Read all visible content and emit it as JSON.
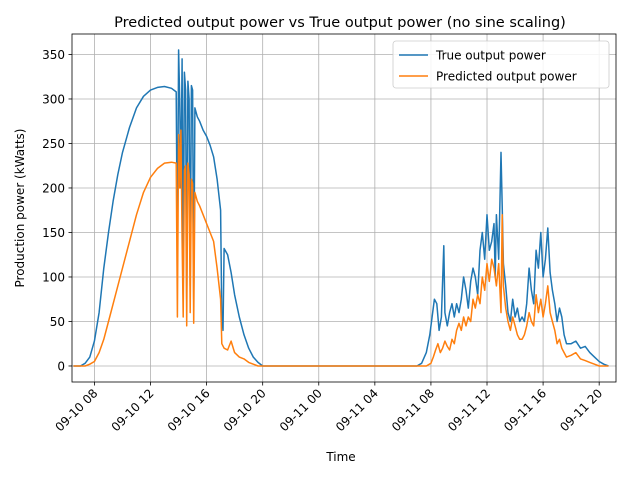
{
  "chart_data": {
    "type": "line",
    "title": "Predicted output power vs True output power (no sine scaling)",
    "xlabel": "Time",
    "ylabel": "Production power (kWatts)",
    "x_unit": "datetime",
    "xlim": [
      "2019-09-10 06:24",
      "2019-09-11 21:12"
    ],
    "ylim": [
      -18,
      373
    ],
    "yticks": [
      0,
      50,
      100,
      150,
      200,
      250,
      300,
      350
    ],
    "xticks": [
      "09-10 08",
      "09-10 12",
      "09-10 16",
      "09-10 20",
      "09-11 00",
      "09-11 04",
      "09-11 08",
      "09-11 12",
      "09-11 16",
      "09-11 20"
    ],
    "xtick_values": [
      "2019-09-10 08:00",
      "2019-09-10 12:00",
      "2019-09-10 16:00",
      "2019-09-10 20:00",
      "2019-09-11 00:00",
      "2019-09-11 04:00",
      "2019-09-11 08:00",
      "2019-09-11 12:00",
      "2019-09-11 16:00",
      "2019-09-11 20:00"
    ],
    "grid": true,
    "legend_position": "top-right",
    "series": [
      {
        "name": "True output power",
        "color": "#1f77b4",
        "points": [
          [
            "2019-09-10 06:30",
            0
          ],
          [
            "2019-09-10 07:00",
            0
          ],
          [
            "2019-09-10 07:20",
            3
          ],
          [
            "2019-09-10 07:40",
            10
          ],
          [
            "2019-09-10 08:00",
            28
          ],
          [
            "2019-09-10 08:20",
            60
          ],
          [
            "2019-09-10 08:40",
            110
          ],
          [
            "2019-09-10 09:00",
            150
          ],
          [
            "2019-09-10 09:20",
            185
          ],
          [
            "2019-09-10 09:40",
            215
          ],
          [
            "2019-09-10 10:00",
            240
          ],
          [
            "2019-09-10 10:30",
            268
          ],
          [
            "2019-09-10 11:00",
            290
          ],
          [
            "2019-09-10 11:30",
            303
          ],
          [
            "2019-09-10 12:00",
            310
          ],
          [
            "2019-09-10 12:30",
            313
          ],
          [
            "2019-09-10 13:00",
            314
          ],
          [
            "2019-09-10 13:30",
            312
          ],
          [
            "2019-09-10 13:50",
            308
          ],
          [
            "2019-09-10 13:55",
            120
          ],
          [
            "2019-09-10 14:00",
            355
          ],
          [
            "2019-09-10 14:05",
            300
          ],
          [
            "2019-09-10 14:10",
            200
          ],
          [
            "2019-09-10 14:15",
            345
          ],
          [
            "2019-09-10 14:20",
            80
          ],
          [
            "2019-09-10 14:25",
            330
          ],
          [
            "2019-09-10 14:30",
            310
          ],
          [
            "2019-09-10 14:35",
            75
          ],
          [
            "2019-09-10 14:40",
            320
          ],
          [
            "2019-09-10 14:45",
            300
          ],
          [
            "2019-09-10 14:50",
            90
          ],
          [
            "2019-09-10 14:55",
            315
          ],
          [
            "2019-09-10 15:00",
            310
          ],
          [
            "2019-09-10 15:05",
            75
          ],
          [
            "2019-09-10 15:10",
            290
          ],
          [
            "2019-09-10 15:20",
            280
          ],
          [
            "2019-09-10 15:30",
            275
          ],
          [
            "2019-09-10 15:45",
            265
          ],
          [
            "2019-09-10 16:00",
            258
          ],
          [
            "2019-09-10 16:15",
            248
          ],
          [
            "2019-09-10 16:30",
            235
          ],
          [
            "2019-09-10 16:45",
            210
          ],
          [
            "2019-09-10 17:00",
            175
          ],
          [
            "2019-09-10 17:05",
            55
          ],
          [
            "2019-09-10 17:10",
            40
          ],
          [
            "2019-09-10 17:15",
            132
          ],
          [
            "2019-09-10 17:30",
            125
          ],
          [
            "2019-09-10 17:45",
            105
          ],
          [
            "2019-09-10 18:00",
            80
          ],
          [
            "2019-09-10 18:20",
            55
          ],
          [
            "2019-09-10 18:40",
            35
          ],
          [
            "2019-09-10 19:00",
            20
          ],
          [
            "2019-09-10 19:20",
            10
          ],
          [
            "2019-09-10 19:40",
            4
          ],
          [
            "2019-09-10 20:00",
            0
          ],
          [
            "2019-09-11 07:00",
            0
          ],
          [
            "2019-09-11 07:20",
            3
          ],
          [
            "2019-09-11 07:40",
            15
          ],
          [
            "2019-09-11 07:55",
            35
          ],
          [
            "2019-09-11 08:05",
            55
          ],
          [
            "2019-09-11 08:15",
            75
          ],
          [
            "2019-09-11 08:25",
            70
          ],
          [
            "2019-09-11 08:35",
            40
          ],
          [
            "2019-09-11 08:45",
            55
          ],
          [
            "2019-09-11 08:55",
            135
          ],
          [
            "2019-09-11 09:00",
            60
          ],
          [
            "2019-09-11 09:10",
            45
          ],
          [
            "2019-09-11 09:20",
            60
          ],
          [
            "2019-09-11 09:30",
            70
          ],
          [
            "2019-09-11 09:40",
            55
          ],
          [
            "2019-09-11 09:50",
            70
          ],
          [
            "2019-09-11 10:00",
            60
          ],
          [
            "2019-09-11 10:10",
            75
          ],
          [
            "2019-09-11 10:20",
            100
          ],
          [
            "2019-09-11 10:30",
            85
          ],
          [
            "2019-09-11 10:40",
            65
          ],
          [
            "2019-09-11 10:50",
            95
          ],
          [
            "2019-09-11 11:00",
            110
          ],
          [
            "2019-09-11 11:10",
            100
          ],
          [
            "2019-09-11 11:20",
            80
          ],
          [
            "2019-09-11 11:30",
            130
          ],
          [
            "2019-09-11 11:40",
            150
          ],
          [
            "2019-09-11 11:50",
            120
          ],
          [
            "2019-09-11 12:00",
            170
          ],
          [
            "2019-09-11 12:10",
            130
          ],
          [
            "2019-09-11 12:20",
            140
          ],
          [
            "2019-09-11 12:30",
            160
          ],
          [
            "2019-09-11 12:35",
            100
          ],
          [
            "2019-09-11 12:40",
            170
          ],
          [
            "2019-09-11 12:50",
            120
          ],
          [
            "2019-09-11 13:00",
            240
          ],
          [
            "2019-09-11 13:05",
            180
          ],
          [
            "2019-09-11 13:10",
            115
          ],
          [
            "2019-09-11 13:20",
            90
          ],
          [
            "2019-09-11 13:30",
            60
          ],
          [
            "2019-09-11 13:40",
            50
          ],
          [
            "2019-09-11 13:50",
            75
          ],
          [
            "2019-09-11 14:00",
            55
          ],
          [
            "2019-09-11 14:10",
            65
          ],
          [
            "2019-09-11 14:20",
            50
          ],
          [
            "2019-09-11 14:30",
            55
          ],
          [
            "2019-09-11 14:40",
            50
          ],
          [
            "2019-09-11 14:50",
            70
          ],
          [
            "2019-09-11 15:00",
            110
          ],
          [
            "2019-09-11 15:10",
            85
          ],
          [
            "2019-09-11 15:20",
            70
          ],
          [
            "2019-09-11 15:30",
            130
          ],
          [
            "2019-09-11 15:40",
            110
          ],
          [
            "2019-09-11 15:50",
            150
          ],
          [
            "2019-09-11 16:00",
            100
          ],
          [
            "2019-09-11 16:10",
            120
          ],
          [
            "2019-09-11 16:20",
            155
          ],
          [
            "2019-09-11 16:30",
            105
          ],
          [
            "2019-09-11 16:40",
            85
          ],
          [
            "2019-09-11 16:50",
            70
          ],
          [
            "2019-09-11 17:00",
            50
          ],
          [
            "2019-09-11 17:10",
            65
          ],
          [
            "2019-09-11 17:20",
            55
          ],
          [
            "2019-09-11 17:30",
            35
          ],
          [
            "2019-09-11 17:40",
            25
          ],
          [
            "2019-09-11 18:00",
            25
          ],
          [
            "2019-09-11 18:20",
            28
          ],
          [
            "2019-09-11 18:40",
            20
          ],
          [
            "2019-09-11 19:00",
            22
          ],
          [
            "2019-09-11 19:20",
            15
          ],
          [
            "2019-09-11 19:40",
            10
          ],
          [
            "2019-09-11 20:00",
            5
          ],
          [
            "2019-09-11 20:20",
            2
          ],
          [
            "2019-09-11 20:40",
            0
          ]
        ]
      },
      {
        "name": "Predicted output power",
        "color": "#ff7f0e",
        "points": [
          [
            "2019-09-10 06:30",
            0
          ],
          [
            "2019-09-10 07:20",
            0
          ],
          [
            "2019-09-10 07:40",
            2
          ],
          [
            "2019-09-10 08:00",
            5
          ],
          [
            "2019-09-10 08:20",
            15
          ],
          [
            "2019-09-10 08:40",
            30
          ],
          [
            "2019-09-10 09:00",
            50
          ],
          [
            "2019-09-10 09:30",
            80
          ],
          [
            "2019-09-10 10:00",
            110
          ],
          [
            "2019-09-10 10:30",
            140
          ],
          [
            "2019-09-10 11:00",
            170
          ],
          [
            "2019-09-10 11:30",
            195
          ],
          [
            "2019-09-10 12:00",
            212
          ],
          [
            "2019-09-10 12:30",
            222
          ],
          [
            "2019-09-10 13:00",
            228
          ],
          [
            "2019-09-10 13:30",
            229
          ],
          [
            "2019-09-10 13:50",
            228
          ],
          [
            "2019-09-10 13:55",
            55
          ],
          [
            "2019-09-10 14:00",
            260
          ],
          [
            "2019-09-10 14:05",
            200
          ],
          [
            "2019-09-10 14:10",
            265
          ],
          [
            "2019-09-10 14:15",
            140
          ],
          [
            "2019-09-10 14:20",
            55
          ],
          [
            "2019-09-10 14:25",
            220
          ],
          [
            "2019-09-10 14:30",
            225
          ],
          [
            "2019-09-10 14:35",
            45
          ],
          [
            "2019-09-10 14:40",
            228
          ],
          [
            "2019-09-10 14:45",
            215
          ],
          [
            "2019-09-10 14:50",
            60
          ],
          [
            "2019-09-10 14:55",
            210
          ],
          [
            "2019-09-10 15:00",
            205
          ],
          [
            "2019-09-10 15:05",
            48
          ],
          [
            "2019-09-10 15:10",
            195
          ],
          [
            "2019-09-10 15:20",
            185
          ],
          [
            "2019-09-10 15:30",
            180
          ],
          [
            "2019-09-10 15:45",
            170
          ],
          [
            "2019-09-10 16:00",
            160
          ],
          [
            "2019-09-10 16:15",
            150
          ],
          [
            "2019-09-10 16:30",
            140
          ],
          [
            "2019-09-10 16:45",
            110
          ],
          [
            "2019-09-10 17:00",
            75
          ],
          [
            "2019-09-10 17:05",
            25
          ],
          [
            "2019-09-10 17:15",
            20
          ],
          [
            "2019-09-10 17:30",
            18
          ],
          [
            "2019-09-10 17:45",
            28
          ],
          [
            "2019-09-10 18:00",
            15
          ],
          [
            "2019-09-10 18:20",
            10
          ],
          [
            "2019-09-10 18:40",
            8
          ],
          [
            "2019-09-10 19:00",
            4
          ],
          [
            "2019-09-10 19:20",
            2
          ],
          [
            "2019-09-10 19:40",
            0
          ],
          [
            "2019-09-11 07:40",
            0
          ],
          [
            "2019-09-11 08:00",
            3
          ],
          [
            "2019-09-11 08:10",
            10
          ],
          [
            "2019-09-11 08:20",
            18
          ],
          [
            "2019-09-11 08:30",
            25
          ],
          [
            "2019-09-11 08:40",
            15
          ],
          [
            "2019-09-11 08:50",
            20
          ],
          [
            "2019-09-11 09:00",
            28
          ],
          [
            "2019-09-11 09:10",
            22
          ],
          [
            "2019-09-11 09:20",
            18
          ],
          [
            "2019-09-11 09:30",
            30
          ],
          [
            "2019-09-11 09:40",
            25
          ],
          [
            "2019-09-11 09:50",
            40
          ],
          [
            "2019-09-11 10:00",
            48
          ],
          [
            "2019-09-11 10:10",
            40
          ],
          [
            "2019-09-11 10:20",
            55
          ],
          [
            "2019-09-11 10:30",
            45
          ],
          [
            "2019-09-11 10:40",
            55
          ],
          [
            "2019-09-11 10:50",
            50
          ],
          [
            "2019-09-11 11:00",
            75
          ],
          [
            "2019-09-11 11:10",
            65
          ],
          [
            "2019-09-11 11:20",
            80
          ],
          [
            "2019-09-11 11:30",
            70
          ],
          [
            "2019-09-11 11:40",
            100
          ],
          [
            "2019-09-11 11:50",
            85
          ],
          [
            "2019-09-11 12:00",
            115
          ],
          [
            "2019-09-11 12:10",
            95
          ],
          [
            "2019-09-11 12:20",
            120
          ],
          [
            "2019-09-11 12:30",
            110
          ],
          [
            "2019-09-11 12:40",
            90
          ],
          [
            "2019-09-11 12:50",
            115
          ],
          [
            "2019-09-11 13:00",
            60
          ],
          [
            "2019-09-11 13:05",
            170
          ],
          [
            "2019-09-11 13:10",
            90
          ],
          [
            "2019-09-11 13:20",
            65
          ],
          [
            "2019-09-11 13:30",
            50
          ],
          [
            "2019-09-11 13:40",
            40
          ],
          [
            "2019-09-11 13:50",
            55
          ],
          [
            "2019-09-11 14:00",
            45
          ],
          [
            "2019-09-11 14:10",
            35
          ],
          [
            "2019-09-11 14:20",
            30
          ],
          [
            "2019-09-11 14:30",
            30
          ],
          [
            "2019-09-11 14:40",
            35
          ],
          [
            "2019-09-11 14:50",
            45
          ],
          [
            "2019-09-11 15:00",
            60
          ],
          [
            "2019-09-11 15:10",
            50
          ],
          [
            "2019-09-11 15:20",
            45
          ],
          [
            "2019-09-11 15:30",
            80
          ],
          [
            "2019-09-11 15:40",
            60
          ],
          [
            "2019-09-11 15:50",
            75
          ],
          [
            "2019-09-11 16:00",
            55
          ],
          [
            "2019-09-11 16:10",
            70
          ],
          [
            "2019-09-11 16:20",
            90
          ],
          [
            "2019-09-11 16:30",
            60
          ],
          [
            "2019-09-11 16:40",
            50
          ],
          [
            "2019-09-11 16:50",
            40
          ],
          [
            "2019-09-11 17:00",
            25
          ],
          [
            "2019-09-11 17:10",
            30
          ],
          [
            "2019-09-11 17:20",
            20
          ],
          [
            "2019-09-11 17:30",
            15
          ],
          [
            "2019-09-11 17:40",
            10
          ],
          [
            "2019-09-11 18:00",
            12
          ],
          [
            "2019-09-11 18:20",
            15
          ],
          [
            "2019-09-11 18:40",
            8
          ],
          [
            "2019-09-11 19:00",
            6
          ],
          [
            "2019-09-11 19:20",
            4
          ],
          [
            "2019-09-11 19:40",
            2
          ],
          [
            "2019-09-11 20:00",
            0
          ],
          [
            "2019-09-11 20:40",
            0
          ]
        ]
      }
    ]
  }
}
